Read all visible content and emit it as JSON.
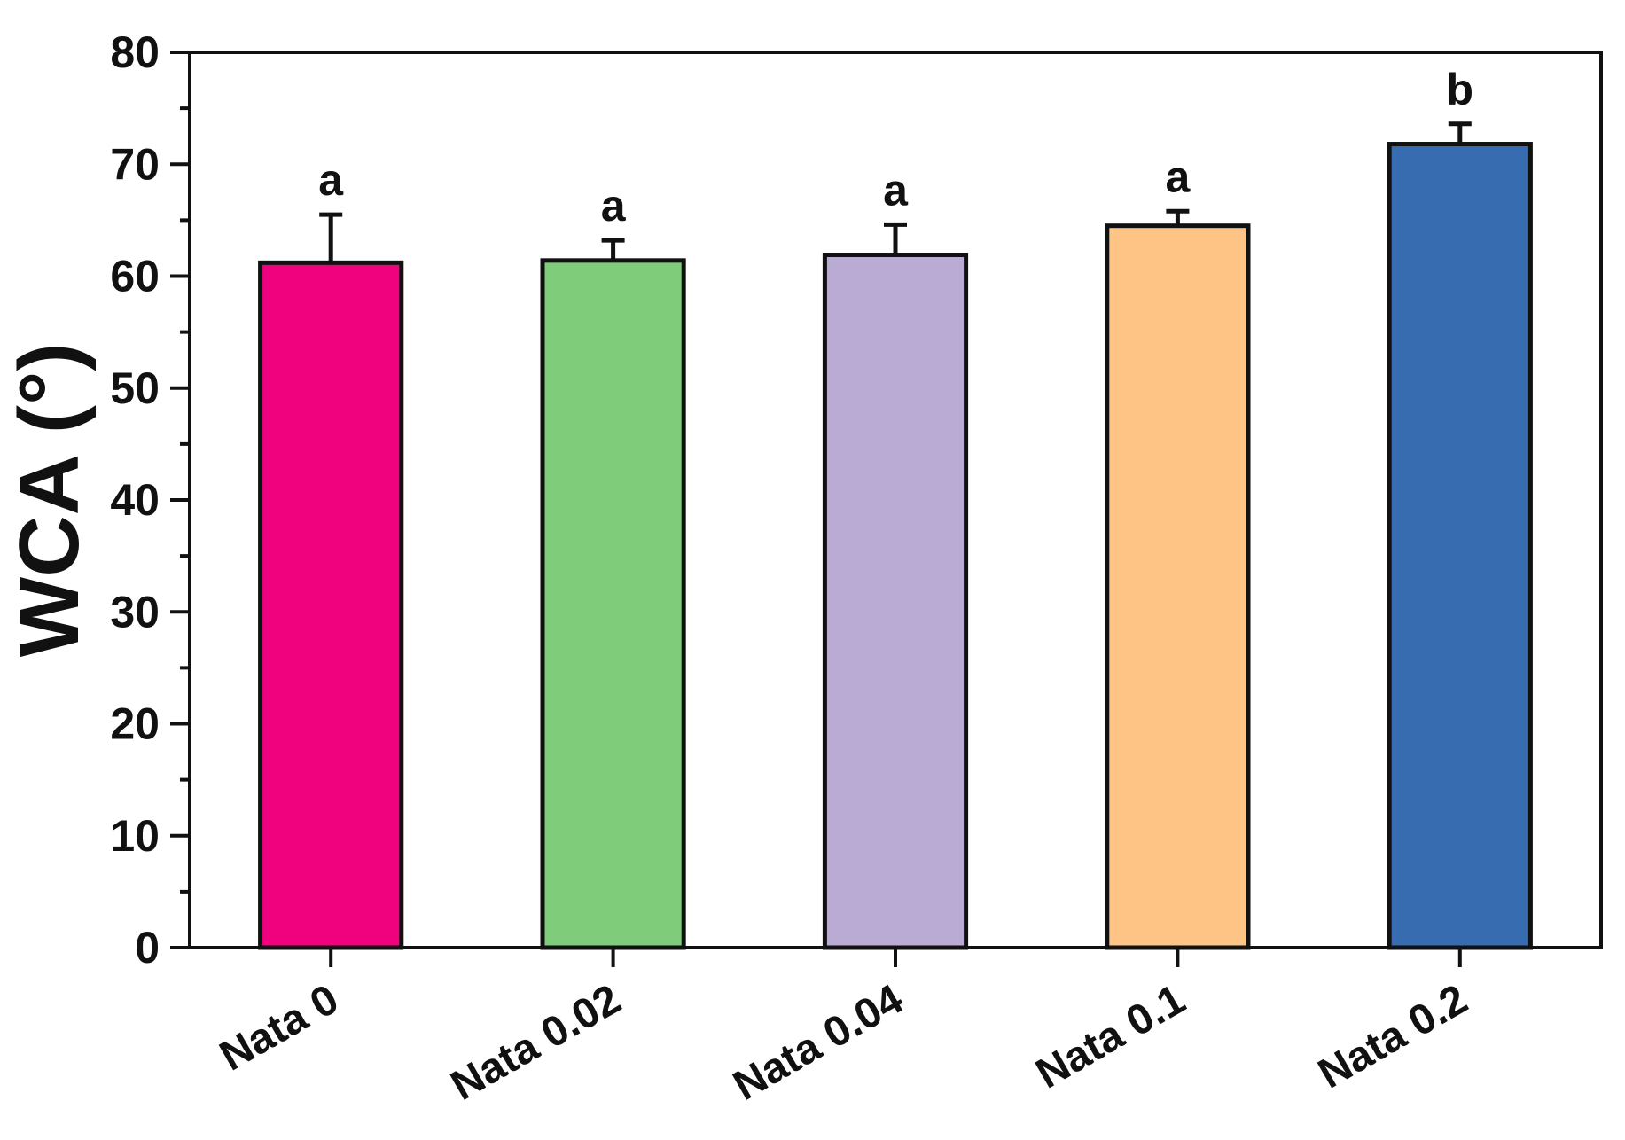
{
  "chart_data": {
    "type": "bar",
    "categories": [
      "Nata 0",
      "Nata 0.02",
      "Nata 0.04",
      "Nata 0.1",
      "Nata 0.2"
    ],
    "values": [
      61.2,
      61.4,
      61.9,
      64.5,
      71.8
    ],
    "errors": [
      4.3,
      1.8,
      2.7,
      1.3,
      1.8
    ],
    "significance": [
      "a",
      "a",
      "a",
      "a",
      "b"
    ],
    "colors": [
      "#F0027F",
      "#7FCC7A",
      "#BAABD4",
      "#FDC485",
      "#386CB0"
    ],
    "title": "",
    "xlabel": "",
    "ylabel": "WCA (°)",
    "ylim": [
      0,
      80
    ],
    "yticks": [
      0,
      10,
      20,
      30,
      40,
      50,
      60,
      70,
      80
    ],
    "grid": false,
    "legend": "none"
  }
}
